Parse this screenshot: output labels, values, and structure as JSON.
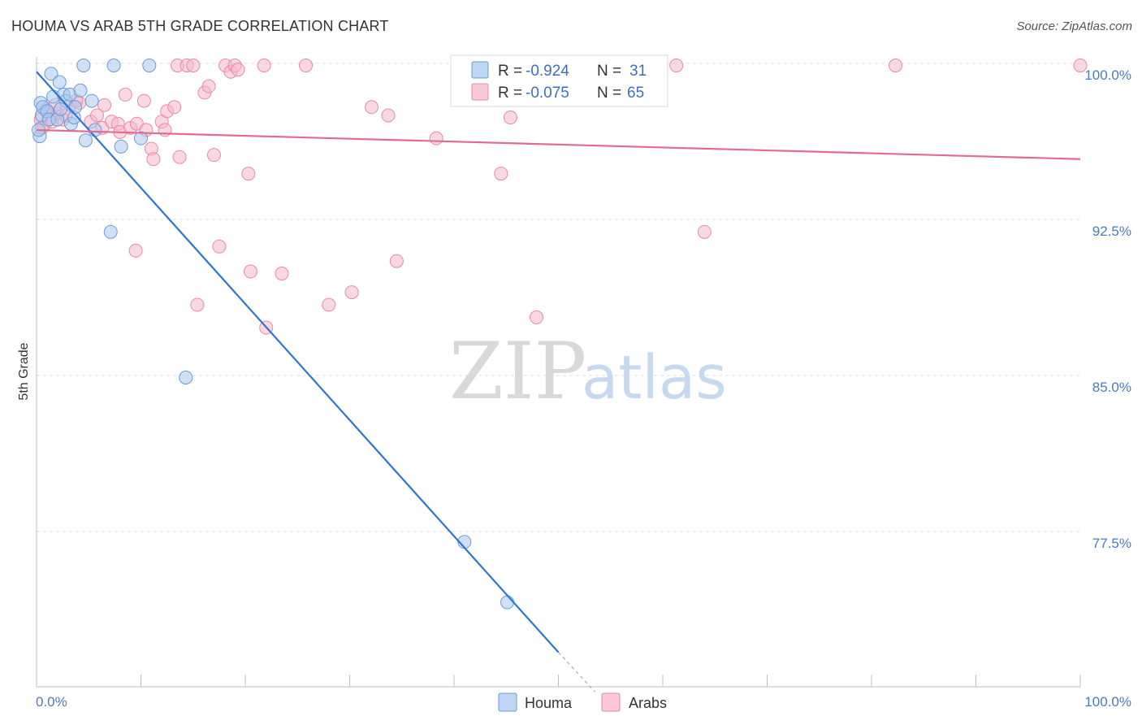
{
  "title": "HOUMA VS ARAB 5TH GRADE CORRELATION CHART",
  "source": "Source: ZipAtlas.com",
  "watermark": {
    "zip": "ZIP",
    "atlas": "atlas"
  },
  "legend": {
    "rows": [
      {
        "series": "Houma",
        "r_label": "R =",
        "r_value": "-0.924",
        "n_label": "N =",
        "n_value": "31",
        "color": "#a9c8ef"
      },
      {
        "series": "Arabs",
        "r_label": "R =",
        "r_value": "-0.075",
        "n_label": "N =",
        "n_value": "65",
        "color": "#f6b8cb"
      }
    ]
  },
  "chart_data": {
    "type": "scatter",
    "title": "HOUMA VS ARAB 5TH GRADE CORRELATION CHART",
    "xlabel": "",
    "ylabel": "5th Grade",
    "xlim": [
      0,
      100
    ],
    "ylim": [
      70.5,
      101
    ],
    "y_ticks": [
      {
        "value": 100,
        "label": "100.0%"
      },
      {
        "value": 92.5,
        "label": "92.5%"
      },
      {
        "value": 85,
        "label": "85.0%"
      },
      {
        "value": 77.5,
        "label": "77.5%"
      }
    ],
    "x_tick_labels": {
      "min": "0.0%",
      "max": "100.0%"
    },
    "grid": true,
    "legend_position": "top-center",
    "series": [
      {
        "name": "Houma",
        "color": "#a9c8ef",
        "edge": "#6a9bd8",
        "line_color": "#2f76d2",
        "trend": {
          "x": [
            0,
            50
          ],
          "y": [
            99.6,
            71.7
          ]
        },
        "trend_dashed": {
          "x": [
            50,
            53.5
          ],
          "y": [
            71.7,
            69.8
          ]
        },
        "points": [
          {
            "x": 0.3,
            "y": 96.5
          },
          {
            "x": 0.4,
            "y": 98.1
          },
          {
            "x": 0.5,
            "y": 97.5
          },
          {
            "x": 0.6,
            "y": 97.9
          },
          {
            "x": 1.0,
            "y": 97.7
          },
          {
            "x": 1.2,
            "y": 97.3
          },
          {
            "x": 1.4,
            "y": 99.5
          },
          {
            "x": 1.6,
            "y": 98.4
          },
          {
            "x": 2.0,
            "y": 97.3
          },
          {
            "x": 2.2,
            "y": 99.1
          },
          {
            "x": 2.6,
            "y": 98.5
          },
          {
            "x": 2.8,
            "y": 98.2
          },
          {
            "x": 3.2,
            "y": 98.5
          },
          {
            "x": 3.3,
            "y": 97.1
          },
          {
            "x": 3.6,
            "y": 97.4
          },
          {
            "x": 3.7,
            "y": 97.9
          },
          {
            "x": 4.2,
            "y": 98.7
          },
          {
            "x": 4.5,
            "y": 99.9
          },
          {
            "x": 4.7,
            "y": 96.3
          },
          {
            "x": 5.3,
            "y": 98.2
          },
          {
            "x": 5.6,
            "y": 96.8
          },
          {
            "x": 7.4,
            "y": 99.9
          },
          {
            "x": 8.1,
            "y": 96.0
          },
          {
            "x": 7.1,
            "y": 91.9
          },
          {
            "x": 10.0,
            "y": 96.4
          },
          {
            "x": 10.8,
            "y": 99.9
          },
          {
            "x": 14.3,
            "y": 84.9
          },
          {
            "x": 41.0,
            "y": 77.0
          },
          {
            "x": 45.1,
            "y": 74.1
          },
          {
            "x": 0.2,
            "y": 96.8
          },
          {
            "x": 2.3,
            "y": 97.8
          }
        ]
      },
      {
        "name": "Arabs",
        "color": "#f6b8cb",
        "edge": "#e98aa7",
        "line_color": "#e36a93",
        "trend": {
          "x": [
            0,
            100
          ],
          "y": [
            96.8,
            95.4
          ]
        },
        "points": [
          {
            "x": 0.4,
            "y": 97.3
          },
          {
            "x": 0.7,
            "y": 97.0
          },
          {
            "x": 1.1,
            "y": 97.7
          },
          {
            "x": 1.5,
            "y": 97.2
          },
          {
            "x": 2.0,
            "y": 97.6
          },
          {
            "x": 2.5,
            "y": 97.3
          },
          {
            "x": 3.2,
            "y": 98.0
          },
          {
            "x": 4.1,
            "y": 98.1
          },
          {
            "x": 5.2,
            "y": 97.2
          },
          {
            "x": 5.8,
            "y": 97.5
          },
          {
            "x": 6.3,
            "y": 96.9
          },
          {
            "x": 6.5,
            "y": 98.0
          },
          {
            "x": 7.2,
            "y": 97.2
          },
          {
            "x": 7.8,
            "y": 97.1
          },
          {
            "x": 8.0,
            "y": 96.7
          },
          {
            "x": 8.5,
            "y": 98.5
          },
          {
            "x": 9.0,
            "y": 96.9
          },
          {
            "x": 9.6,
            "y": 97.1
          },
          {
            "x": 10.3,
            "y": 98.2
          },
          {
            "x": 10.5,
            "y": 96.8
          },
          {
            "x": 11.0,
            "y": 95.9
          },
          {
            "x": 11.2,
            "y": 95.4
          },
          {
            "x": 12.0,
            "y": 97.2
          },
          {
            "x": 12.3,
            "y": 96.8
          },
          {
            "x": 12.5,
            "y": 97.7
          },
          {
            "x": 13.2,
            "y": 97.9
          },
          {
            "x": 13.5,
            "y": 99.9
          },
          {
            "x": 13.7,
            "y": 95.5
          },
          {
            "x": 14.4,
            "y": 99.9
          },
          {
            "x": 15.0,
            "y": 99.9
          },
          {
            "x": 16.1,
            "y": 98.6
          },
          {
            "x": 16.5,
            "y": 98.9
          },
          {
            "x": 17.0,
            "y": 95.6
          },
          {
            "x": 18.1,
            "y": 99.9
          },
          {
            "x": 18.6,
            "y": 99.6
          },
          {
            "x": 19.0,
            "y": 99.9
          },
          {
            "x": 19.3,
            "y": 99.7
          },
          {
            "x": 20.3,
            "y": 94.7
          },
          {
            "x": 21.8,
            "y": 99.9
          },
          {
            "x": 25.8,
            "y": 99.9
          },
          {
            "x": 32.1,
            "y": 97.9
          },
          {
            "x": 33.7,
            "y": 97.5
          },
          {
            "x": 38.3,
            "y": 96.4
          },
          {
            "x": 44.5,
            "y": 94.7
          },
          {
            "x": 45.4,
            "y": 97.4
          },
          {
            "x": 47.3,
            "y": 99.9
          },
          {
            "x": 61.3,
            "y": 99.9
          },
          {
            "x": 64.0,
            "y": 91.9
          },
          {
            "x": 82.3,
            "y": 99.9
          },
          {
            "x": 100.0,
            "y": 99.9
          },
          {
            "x": 9.5,
            "y": 91.0
          },
          {
            "x": 15.4,
            "y": 88.4
          },
          {
            "x": 17.5,
            "y": 91.2
          },
          {
            "x": 20.5,
            "y": 90.0
          },
          {
            "x": 22.0,
            "y": 87.3
          },
          {
            "x": 23.5,
            "y": 89.9
          },
          {
            "x": 28.0,
            "y": 88.4
          },
          {
            "x": 30.2,
            "y": 89.0
          },
          {
            "x": 34.5,
            "y": 90.5
          },
          {
            "x": 47.9,
            "y": 87.8
          },
          {
            "x": 0.9,
            "y": 97.8
          },
          {
            "x": 1.8,
            "y": 98.0
          },
          {
            "x": 3.8,
            "y": 98.2
          },
          {
            "x": 2.8,
            "y": 97.5
          },
          {
            "x": 0.5,
            "y": 96.9
          }
        ]
      }
    ]
  }
}
